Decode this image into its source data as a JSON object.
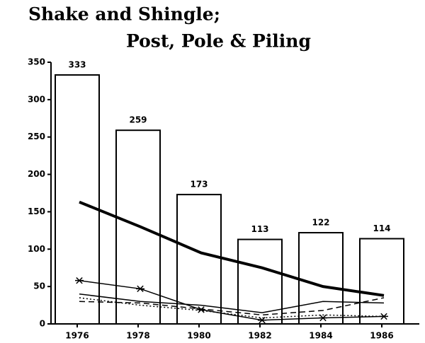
{
  "chart_data": {
    "type": "bar",
    "title": [
      "Shake and Shingle;",
      "Post, Pole & Piling"
    ],
    "categories": [
      "1976",
      "1978",
      "1980",
      "1982",
      "1984",
      "1986"
    ],
    "values": [
      333,
      259,
      173,
      113,
      122,
      114
    ],
    "color": "#000000",
    "ylim": [
      0,
      350
    ],
    "yticks": [
      0,
      50,
      100,
      150,
      200,
      250,
      300,
      350
    ],
    "series": [
      {
        "type": "line",
        "color": "#000000",
        "width": 4,
        "values": [
          163,
          130,
          95,
          75,
          50,
          38
        ]
      },
      {
        "type": "line",
        "color": "#000000",
        "width": 1.5,
        "marker": "asterisk",
        "values": [
          58,
          47,
          19,
          5,
          8,
          10
        ]
      },
      {
        "type": "line",
        "color": "#000000",
        "width": 1.5,
        "values": [
          40,
          30,
          25,
          15,
          30,
          28
        ]
      },
      {
        "type": "line",
        "color": "#000000",
        "width": 1.5,
        "dash": "8 5",
        "values": [
          30,
          28,
          20,
          12,
          18,
          35
        ]
      },
      {
        "type": "line",
        "color": "#000000",
        "width": 1.5,
        "dash": "2 3",
        "values": [
          35,
          25,
          18,
          8,
          12,
          10
        ]
      }
    ]
  }
}
